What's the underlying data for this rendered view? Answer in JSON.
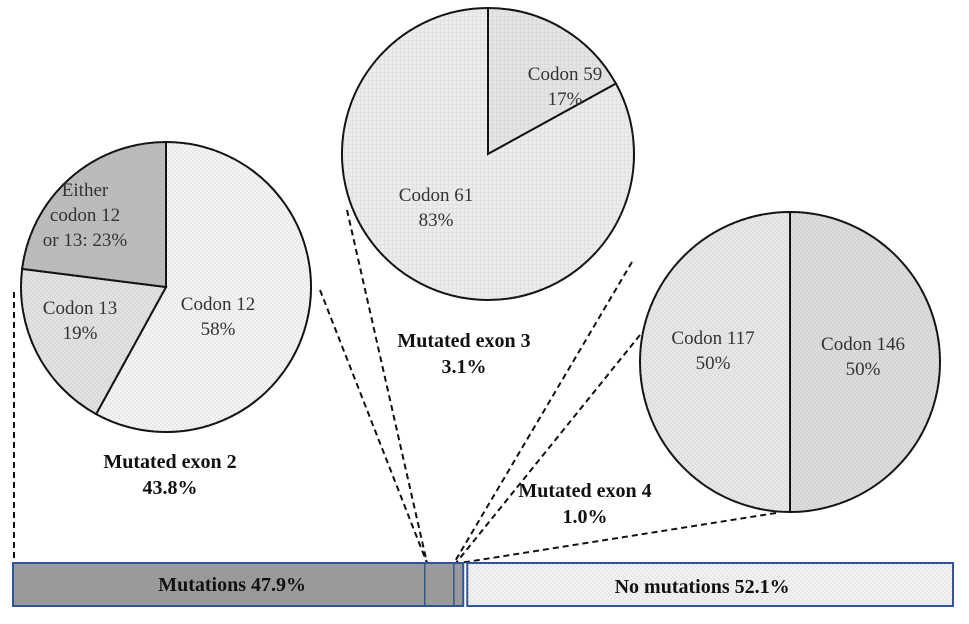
{
  "chart_data": [
    {
      "type": "bar",
      "orientation": "horizontal-stacked",
      "segments": [
        {
          "label": "Mutations 47.9%",
          "value": 47.9,
          "color": "#9a9a9a"
        },
        {
          "label": "No mutations 52.1%",
          "value": 52.1,
          "color": "#f2f2f2"
        }
      ],
      "mutation_breakdown": [
        {
          "name": "exon 2",
          "value": 43.8
        },
        {
          "name": "exon 3",
          "value": 3.1
        },
        {
          "name": "exon 4",
          "value": 1.0
        }
      ],
      "border_color": "#2f5597"
    },
    {
      "type": "pie",
      "title_line1": "Mutated exon 2",
      "title_line2": "43.8%",
      "slices": [
        {
          "label_lines": [
            "Codon 12",
            "58%"
          ],
          "value": 58,
          "color": "#f4f4f4"
        },
        {
          "label_lines": [
            "Codon 13",
            "19%"
          ],
          "value": 19,
          "color": "#e2e2e2"
        },
        {
          "label_lines": [
            "Either",
            "codon 12",
            "or 13: 23%"
          ],
          "value": 23,
          "color": "#bdbdbd"
        }
      ]
    },
    {
      "type": "pie",
      "title_line1": "Mutated exon 3",
      "title_line2": "3.1%",
      "slices": [
        {
          "label_lines": [
            "Codon 59",
            "17%"
          ],
          "value": 17,
          "color": "#e4e4e4"
        },
        {
          "label_lines": [
            "Codon 61",
            "83%"
          ],
          "value": 83,
          "color": "#ececec"
        }
      ]
    },
    {
      "type": "pie",
      "title_line1": "Mutated exon 4",
      "title_line2": "1.0%",
      "slices": [
        {
          "label_lines": [
            "Codon 117",
            "50%"
          ],
          "value": 50,
          "color": "#dcdcdc"
        },
        {
          "label_lines": [
            "Codon 146",
            "50%"
          ],
          "value": 50,
          "color": "#e8e8e8"
        }
      ]
    }
  ]
}
